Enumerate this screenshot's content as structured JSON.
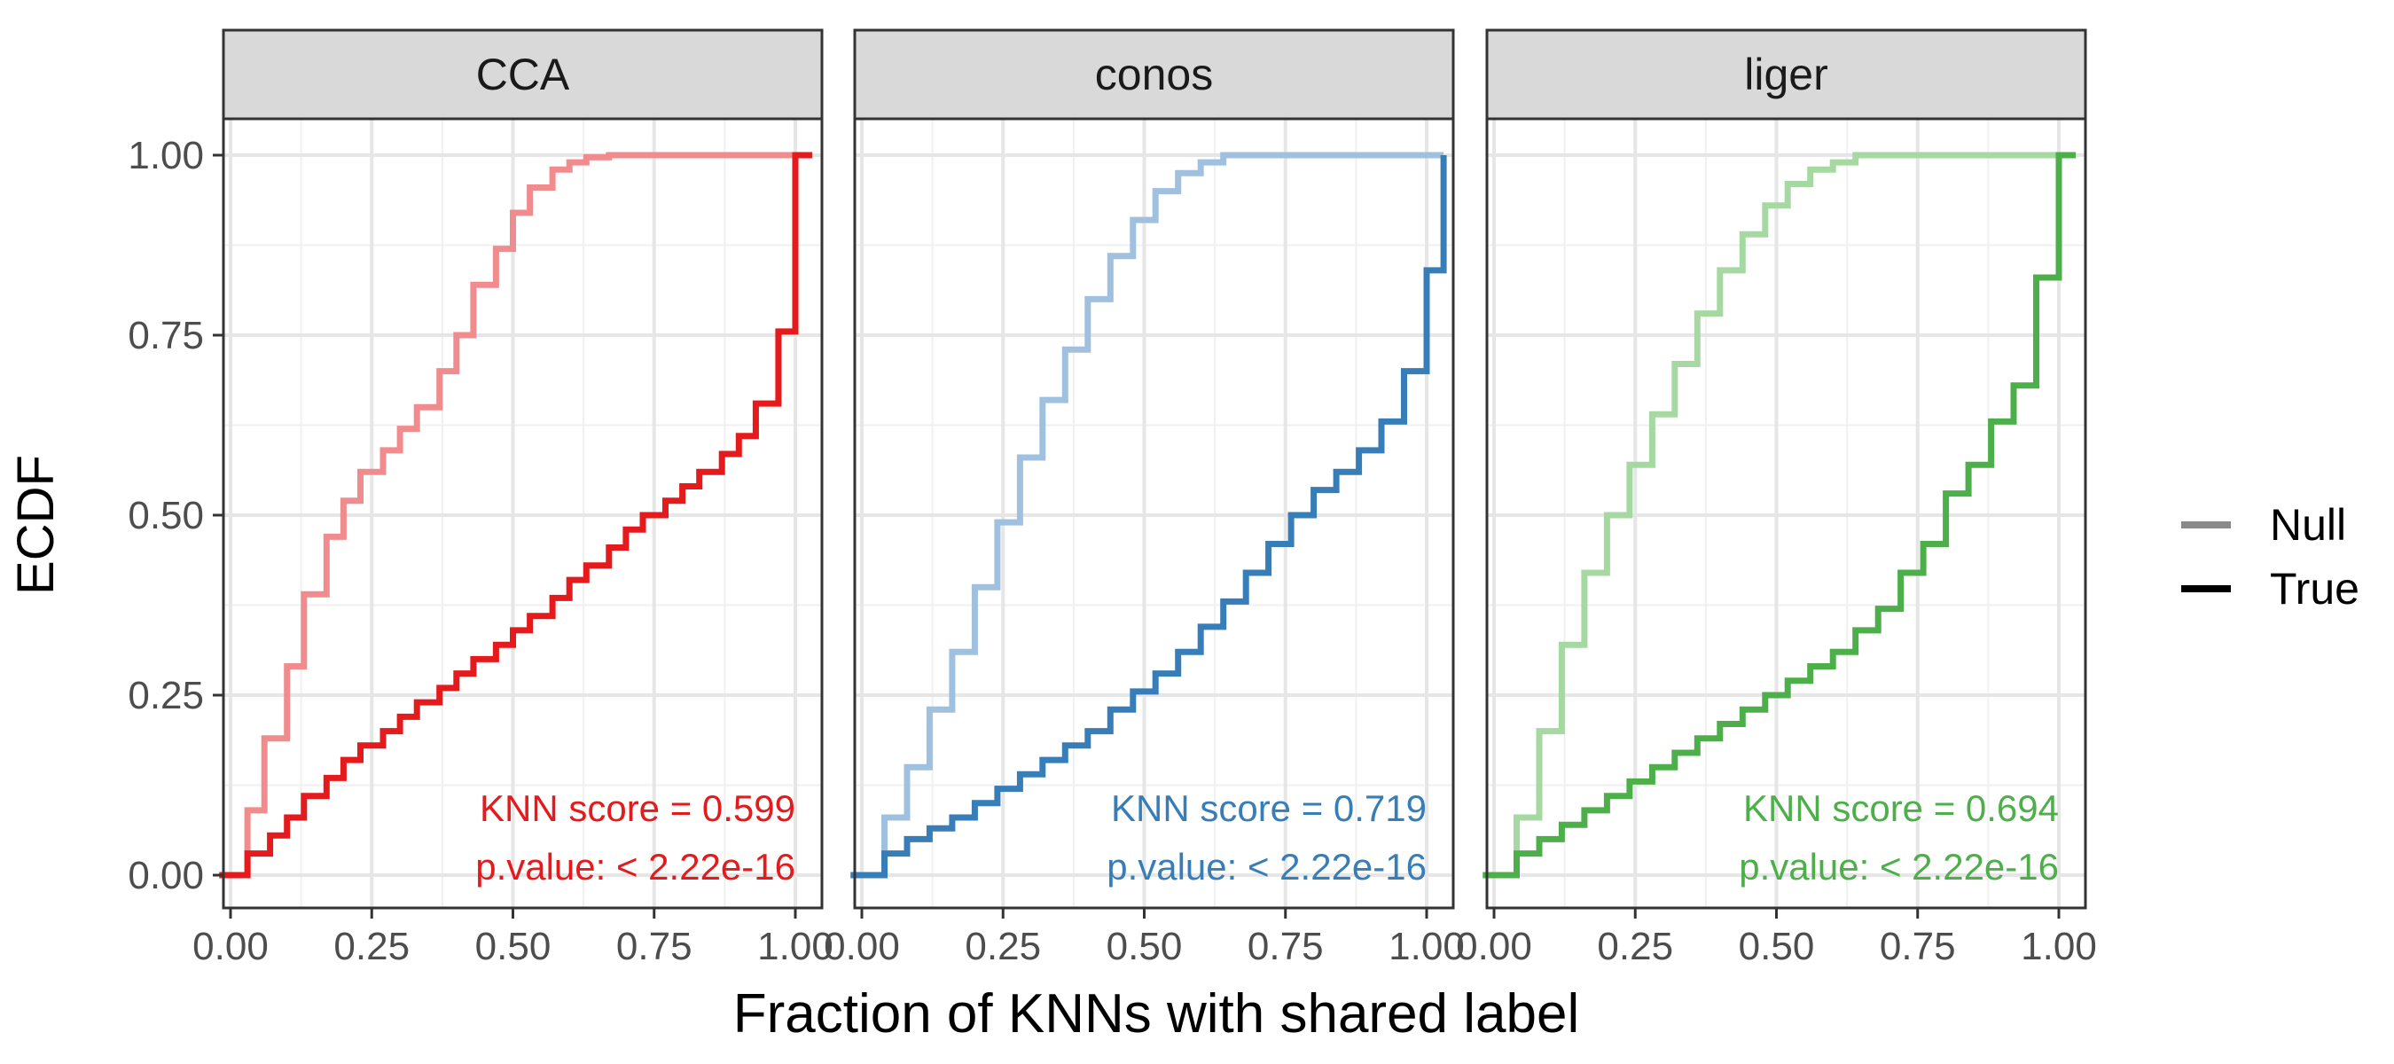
{
  "chart_data": {
    "type": "line",
    "chart_kind": "ecdf step plot (faceted)",
    "xlabel": "Fraction of KNNs with shared label",
    "ylabel": "ECDF",
    "xlim": [
      0,
      1
    ],
    "ylim": [
      0,
      1
    ],
    "x_ticks": [
      "0.00",
      "0.25",
      "0.50",
      "0.75",
      "1.00"
    ],
    "y_ticks": [
      "0.00",
      "0.25",
      "0.50",
      "0.75",
      "1.00"
    ],
    "grid": true,
    "legend": {
      "position": "right",
      "entries": [
        {
          "label": "Null",
          "color": "#8a8a8a"
        },
        {
          "label": "True",
          "color": "#000000"
        }
      ]
    },
    "facets": [
      {
        "title": "CCA",
        "color_true": "#e41a1c",
        "color_null": "#f08c8e",
        "annotation_score": "KNN score = 0.599",
        "annotation_p": "p.value: < 2.22e-16",
        "series": [
          {
            "name": "Null",
            "x": [
              0,
              0.03,
              0.06,
              0.1,
              0.13,
              0.17,
              0.2,
              0.23,
              0.27,
              0.3,
              0.33,
              0.37,
              0.4,
              0.43,
              0.47,
              0.5,
              0.53,
              0.57,
              0.6,
              0.63,
              0.67,
              1.03
            ],
            "y": [
              0,
              0.09,
              0.19,
              0.29,
              0.39,
              0.47,
              0.52,
              0.56,
              0.59,
              0.62,
              0.65,
              0.7,
              0.75,
              0.82,
              0.87,
              0.92,
              0.955,
              0.98,
              0.99,
              0.997,
              1.0,
              1.0
            ]
          },
          {
            "name": "True",
            "x": [
              0,
              0.03,
              0.07,
              0.1,
              0.13,
              0.17,
              0.2,
              0.23,
              0.27,
              0.3,
              0.33,
              0.37,
              0.4,
              0.43,
              0.47,
              0.5,
              0.53,
              0.57,
              0.6,
              0.63,
              0.67,
              0.7,
              0.73,
              0.77,
              0.8,
              0.83,
              0.87,
              0.9,
              0.93,
              0.97,
              1.0,
              1.03
            ],
            "y": [
              0,
              0.03,
              0.055,
              0.08,
              0.11,
              0.135,
              0.16,
              0.18,
              0.2,
              0.22,
              0.24,
              0.26,
              0.28,
              0.3,
              0.32,
              0.34,
              0.36,
              0.385,
              0.41,
              0.43,
              0.455,
              0.48,
              0.5,
              0.52,
              0.54,
              0.56,
              0.585,
              0.61,
              0.655,
              0.755,
              1.0,
              1.0
            ]
          }
        ]
      },
      {
        "title": "conos",
        "color_true": "#377eb8",
        "color_null": "#9fc0de",
        "annotation_score": "KNN score = 0.719",
        "annotation_p": "p.value: < 2.22e-16",
        "series": [
          {
            "name": "Null",
            "x": [
              0,
              0.04,
              0.08,
              0.12,
              0.16,
              0.2,
              0.24,
              0.28,
              0.32,
              0.36,
              0.4,
              0.44,
              0.48,
              0.52,
              0.56,
              0.6,
              0.64,
              1.03
            ],
            "y": [
              0,
              0.08,
              0.15,
              0.23,
              0.31,
              0.4,
              0.49,
              0.58,
              0.66,
              0.73,
              0.8,
              0.86,
              0.91,
              0.95,
              0.975,
              0.99,
              1.0,
              1.0
            ]
          },
          {
            "name": "True",
            "x": [
              0,
              0.04,
              0.08,
              0.12,
              0.16,
              0.2,
              0.24,
              0.28,
              0.32,
              0.36,
              0.4,
              0.44,
              0.48,
              0.52,
              0.56,
              0.6,
              0.64,
              0.68,
              0.72,
              0.76,
              0.8,
              0.84,
              0.88,
              0.92,
              0.96,
              1.0,
              1.03
            ],
            "y": [
              0,
              0.03,
              0.05,
              0.065,
              0.08,
              0.1,
              0.12,
              0.14,
              0.16,
              0.18,
              0.2,
              0.23,
              0.255,
              0.28,
              0.31,
              0.345,
              0.38,
              0.42,
              0.46,
              0.5,
              0.535,
              0.56,
              0.59,
              0.63,
              0.7,
              0.84,
              1.0
            ]
          }
        ]
      },
      {
        "title": "liger",
        "color_true": "#4daf4a",
        "color_null": "#a6d8a2",
        "annotation_score": "KNN score = 0.694",
        "annotation_p": "p.value: < 2.22e-16",
        "series": [
          {
            "name": "Null",
            "x": [
              0,
              0.04,
              0.08,
              0.12,
              0.16,
              0.2,
              0.24,
              0.28,
              0.32,
              0.36,
              0.4,
              0.44,
              0.48,
              0.52,
              0.56,
              0.6,
              0.64,
              1.03
            ],
            "y": [
              0,
              0.08,
              0.2,
              0.32,
              0.42,
              0.5,
              0.57,
              0.64,
              0.71,
              0.78,
              0.84,
              0.89,
              0.93,
              0.96,
              0.98,
              0.99,
              1.0,
              1.0
            ]
          },
          {
            "name": "True",
            "x": [
              0,
              0.04,
              0.08,
              0.12,
              0.16,
              0.2,
              0.24,
              0.28,
              0.32,
              0.36,
              0.4,
              0.44,
              0.48,
              0.52,
              0.56,
              0.6,
              0.64,
              0.68,
              0.72,
              0.76,
              0.8,
              0.84,
              0.88,
              0.92,
              0.96,
              1.0,
              1.03
            ],
            "y": [
              0,
              0.03,
              0.05,
              0.07,
              0.09,
              0.11,
              0.13,
              0.15,
              0.17,
              0.19,
              0.21,
              0.23,
              0.25,
              0.27,
              0.29,
              0.31,
              0.34,
              0.37,
              0.42,
              0.46,
              0.53,
              0.57,
              0.63,
              0.68,
              0.83,
              1.0,
              1.0
            ]
          }
        ]
      }
    ]
  }
}
